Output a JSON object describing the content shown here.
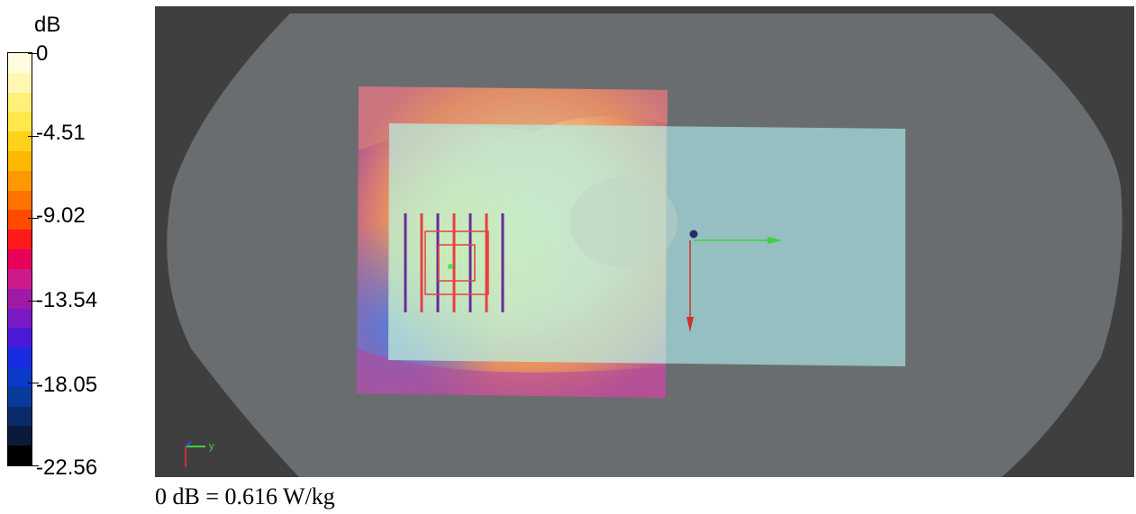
{
  "legend": {
    "unit": "dB",
    "ticks": [
      "0",
      "-4.51",
      "-9.02",
      "-13.54",
      "-18.05",
      "-22.56"
    ],
    "colors": [
      "#fffde0",
      "#fff7b3",
      "#fff07a",
      "#ffe84a",
      "#ffd21a",
      "#ffb800",
      "#ff9800",
      "#ff7400",
      "#ff4a00",
      "#ff1a1a",
      "#e8005a",
      "#cc1a8c",
      "#a01aa8",
      "#7a1ac4",
      "#4a1ad8",
      "#1a2ae0",
      "#0a3ac8",
      "#0a3a9a",
      "#0a2a6a",
      "#0a1a3a",
      "#000000"
    ]
  },
  "axes_indicator": {
    "y_label": "y"
  },
  "caption": "0 dB = 0.616 W/kg"
}
